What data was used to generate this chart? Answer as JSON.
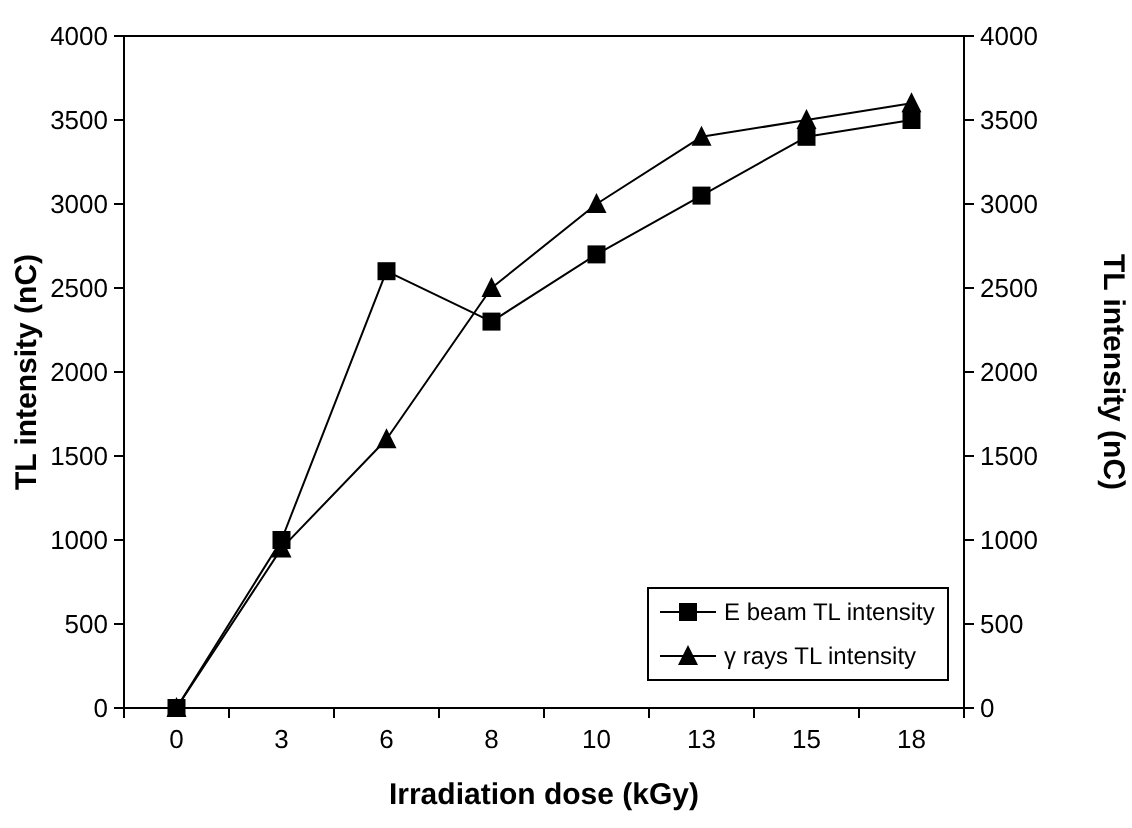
{
  "chart_data": {
    "type": "line",
    "xlabel": "Irradiation dose (kGy)",
    "ylabel": "TL intensity (nC)",
    "y2label": "TL intensity (nC)",
    "categories": [
      "0",
      "3",
      "6",
      "8",
      "10",
      "13",
      "15",
      "18"
    ],
    "series": [
      {
        "name": "E beam TL intensity",
        "color": "#000000",
        "marker": "square",
        "values": [
          0,
          1000,
          2600,
          2300,
          2700,
          3050,
          3400,
          3500
        ]
      },
      {
        "name": "γ rays TL intensity",
        "color": "#000000",
        "marker": "triangle",
        "values": [
          0,
          950,
          1600,
          2500,
          3000,
          3400,
          3500,
          3600
        ]
      }
    ],
    "ylim": [
      0,
      4000
    ],
    "yticks": [
      0,
      500,
      1000,
      1500,
      2000,
      2500,
      3000,
      3500,
      4000
    ],
    "y2lim": [
      0,
      4000
    ],
    "y2ticks": [
      0,
      500,
      1000,
      1500,
      2000,
      2500,
      3000,
      3500,
      4000
    ],
    "grid": false,
    "legend": "bottom right",
    "line_style": "solid"
  }
}
